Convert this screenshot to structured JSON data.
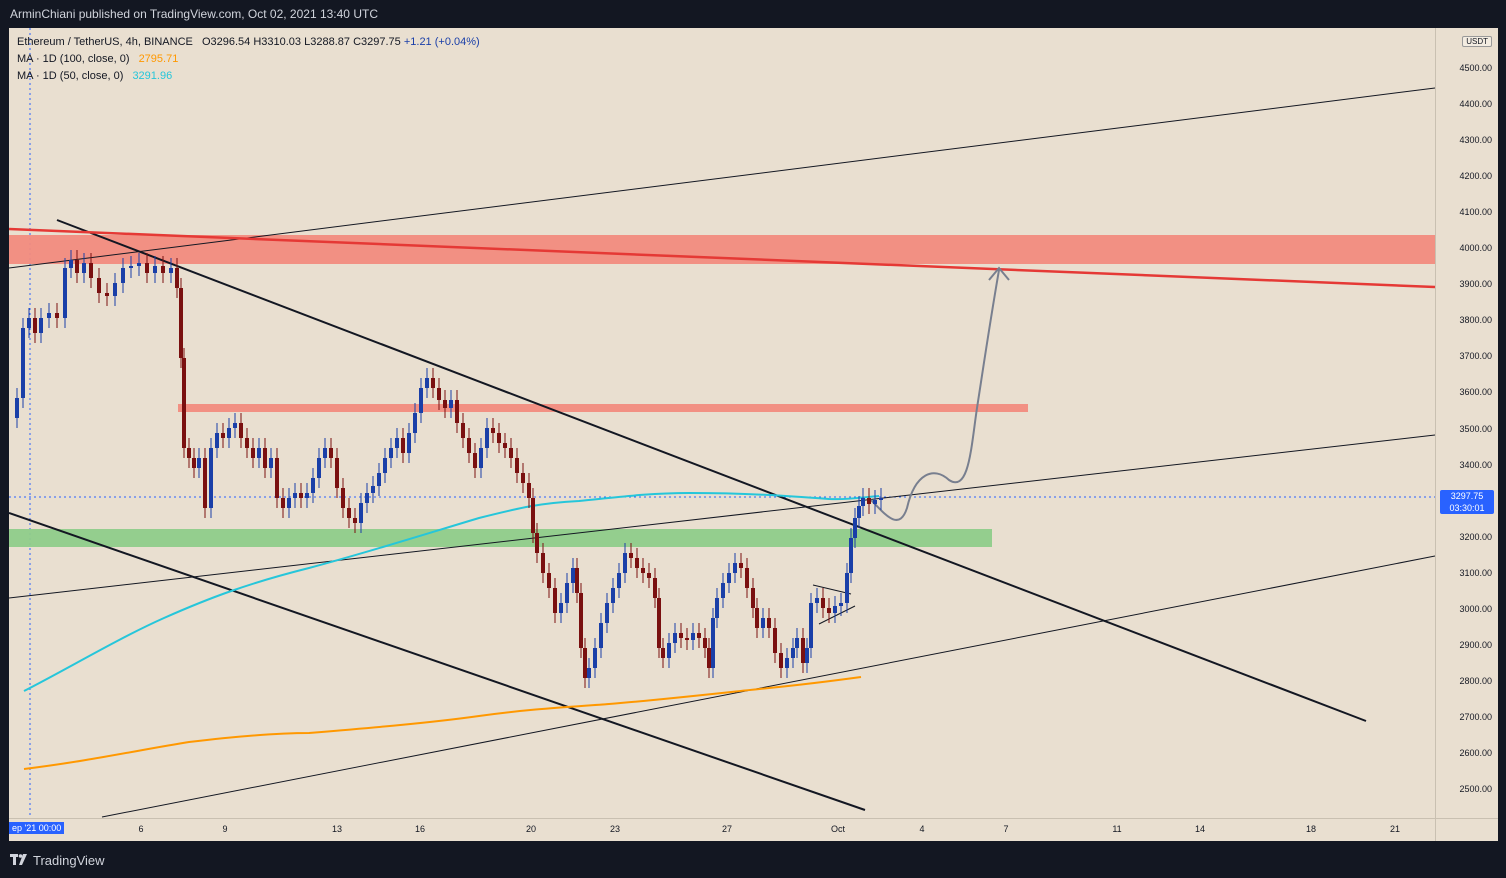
{
  "header": {
    "published_by": "ArminChiani published on TradingView.com, Oct 02, 2021 13:40 UTC"
  },
  "legend": {
    "symbol_line": "Ethereum / TetherUS, 4h, BINANCE",
    "open": "O3296.54",
    "high": "H3310.03",
    "low": "L3288.87",
    "close": "C3297.75",
    "change": "+1.21 (+0.04%)",
    "ma100_label": "MA · 1D (100, close, 0)",
    "ma100_value": "2795.71",
    "ma50_label": "MA · 1D (50, close, 0)",
    "ma50_value": "3291.96"
  },
  "price_axis": {
    "currency": "USDT",
    "labels": [
      "4500.00",
      "4400.00",
      "4300.00",
      "4200.00",
      "4100.00",
      "4000.00",
      "3900.00",
      "3800.00",
      "3700.00",
      "3600.00",
      "3500.00",
      "3400.00",
      "3200.00",
      "3100.00",
      "3000.00",
      "2900.00",
      "2800.00",
      "2700.00",
      "2600.00",
      "2500.00"
    ],
    "current_price": "3297.75",
    "countdown": "03:30:01"
  },
  "time_axis": {
    "cursor_label": "ep '21  00:00",
    "ticks": [
      "6",
      "9",
      "13",
      "16",
      "20",
      "23",
      "27",
      "Oct",
      "4",
      "7",
      "11",
      "14",
      "18",
      "21"
    ]
  },
  "footer": {
    "brand": "TradingView"
  },
  "colors": {
    "background": "#e9dfd0",
    "up_candle": "#1a3fa8",
    "down_candle": "#7a1010",
    "ma50": "#26c6da",
    "ma100": "#ff9800",
    "resistance_zone": "#f28b7e",
    "support_zone": "#8fcc8a",
    "red_trendline": "#e53935"
  },
  "chart_data": {
    "type": "candlestick",
    "symbol": "Ethereum / TetherUS",
    "interval": "4h",
    "exchange": "BINANCE",
    "x": [
      "6",
      "9",
      "13",
      "16",
      "20",
      "23",
      "27",
      "Oct",
      "4",
      "7",
      "11",
      "14",
      "18",
      "21"
    ],
    "y_range": [
      2450,
      4580
    ],
    "zones": [
      {
        "low": 3940,
        "high": 4020
      },
      {
        "low": 3530,
        "high": 3550
      },
      {
        "low": 3160,
        "high": 3205
      }
    ],
    "series": [
      {
        "name": "MA · 1D (100, close, 0)",
        "last": 2795.71
      },
      {
        "name": "MA · 1D (50, close, 0)",
        "last": 3291.96
      }
    ]
  }
}
